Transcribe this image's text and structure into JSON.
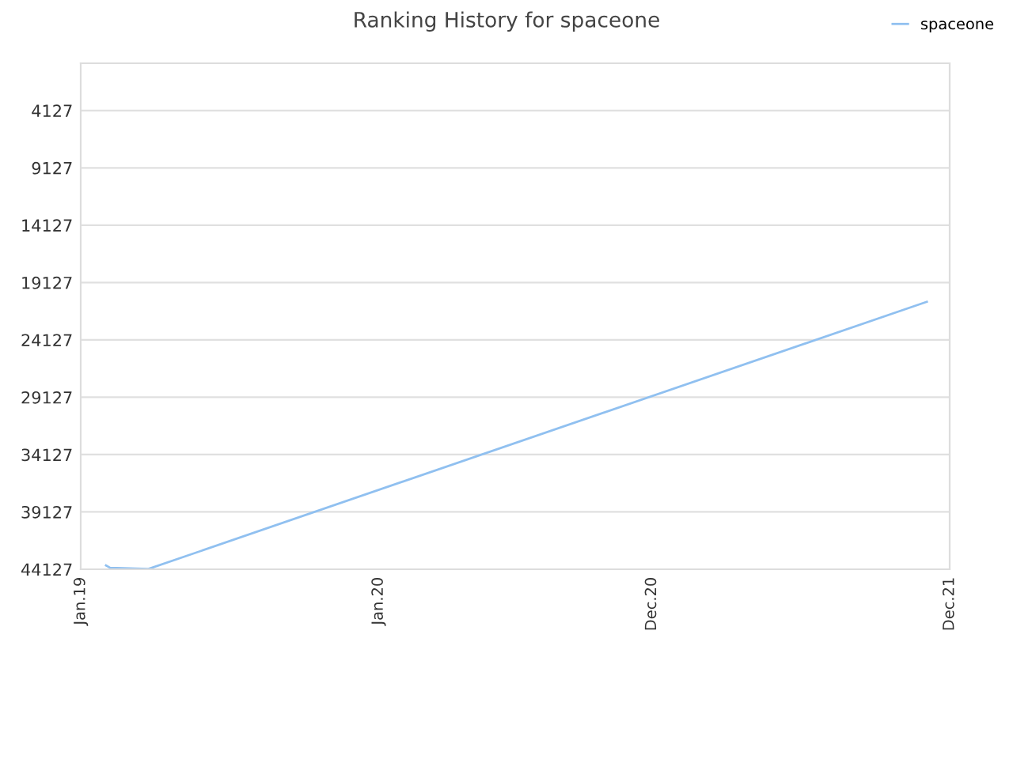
{
  "chart_data": {
    "type": "line",
    "title": "Ranking History for spaceone",
    "xlim": [
      "2019-01-01",
      "2021-12-01"
    ],
    "xticks": [
      {
        "value": "2019-01-01",
        "label": "Jan.19"
      },
      {
        "value": "2020-01-01",
        "label": "Jan.20"
      },
      {
        "value": "2020-12-01",
        "label": "Dec.20"
      },
      {
        "value": "2021-12-01",
        "label": "Dec.21"
      }
    ],
    "ylim": [
      44127,
      0
    ],
    "yticks": [
      4127,
      9127,
      14127,
      19127,
      24127,
      29127,
      34127,
      39127,
      44127
    ],
    "series": [
      {
        "name": "spaceone",
        "color": "#90c0f0",
        "x": [
          "2019-02-01",
          "2019-02-06",
          "2019-03-25",
          "2021-11-03"
        ],
        "values": [
          43800,
          44000,
          44100,
          20800
        ]
      }
    ],
    "grid": "y",
    "legend": "top right",
    "marker": "none",
    "line_style": "solid"
  }
}
